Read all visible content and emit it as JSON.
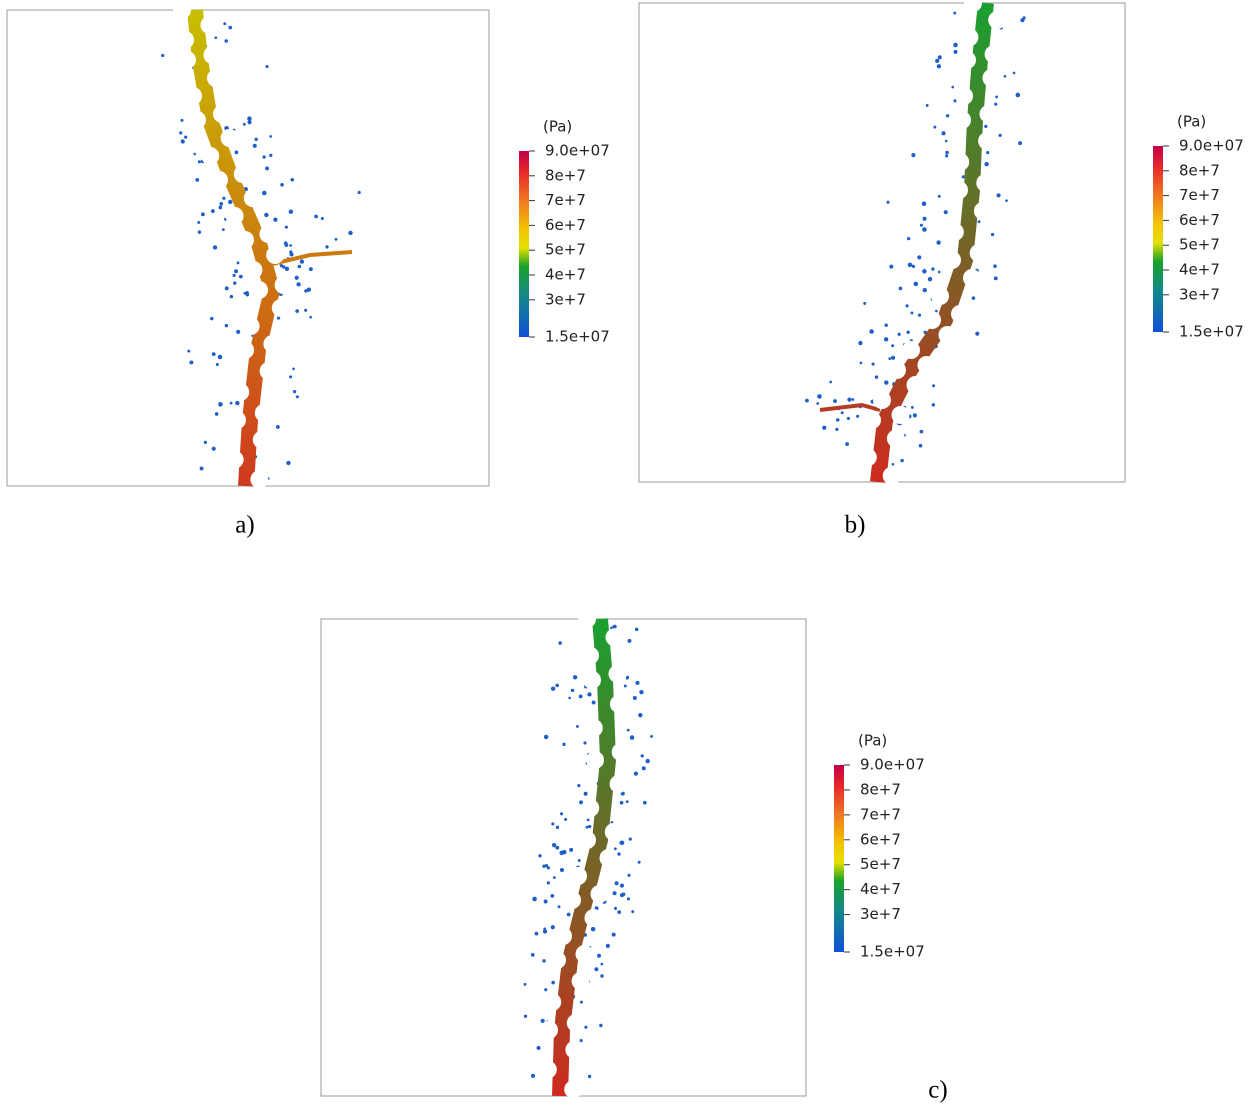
{
  "panels": [
    {
      "label": "a)",
      "colorbar": {
        "unit": "(Pa)",
        "lim": [
          15000000,
          90000000
        ],
        "ticks": [
          {
            "value": 90000000,
            "label": "9.0e+07"
          },
          {
            "value": 80000000,
            "label": "8e+7"
          },
          {
            "value": 70000000,
            "label": "7e+7"
          },
          {
            "value": 60000000,
            "label": "6e+7"
          },
          {
            "value": 50000000,
            "label": "5e+7"
          },
          {
            "value": 40000000,
            "label": "4e+7"
          },
          {
            "value": 30000000,
            "label": "3e+7"
          },
          {
            "value": 15000000,
            "label": "1.5e+07"
          }
        ]
      }
    },
    {
      "label": "b)",
      "colorbar": {
        "unit": "(Pa)",
        "lim": [
          15000000,
          90000000
        ],
        "ticks": [
          {
            "value": 90000000,
            "label": "9.0e+07"
          },
          {
            "value": 80000000,
            "label": "8e+7"
          },
          {
            "value": 70000000,
            "label": "7e+7"
          },
          {
            "value": 60000000,
            "label": "6e+7"
          },
          {
            "value": 50000000,
            "label": "5e+7"
          },
          {
            "value": 40000000,
            "label": "4e+7"
          },
          {
            "value": 30000000,
            "label": "3e+7"
          },
          {
            "value": 15000000,
            "label": "1.5e+07"
          }
        ]
      }
    },
    {
      "label": "c)",
      "colorbar": {
        "unit": "(Pa)",
        "lim": [
          15000000,
          90000000
        ],
        "ticks": [
          {
            "value": 90000000,
            "label": "9.0e+07"
          },
          {
            "value": 80000000,
            "label": "8e+7"
          },
          {
            "value": 70000000,
            "label": "7e+7"
          },
          {
            "value": 60000000,
            "label": "6e+7"
          },
          {
            "value": 50000000,
            "label": "5e+7"
          },
          {
            "value": 40000000,
            "label": "4e+7"
          },
          {
            "value": 30000000,
            "label": "3e+7"
          },
          {
            "value": 15000000,
            "label": "1.5e+07"
          }
        ]
      }
    }
  ]
}
